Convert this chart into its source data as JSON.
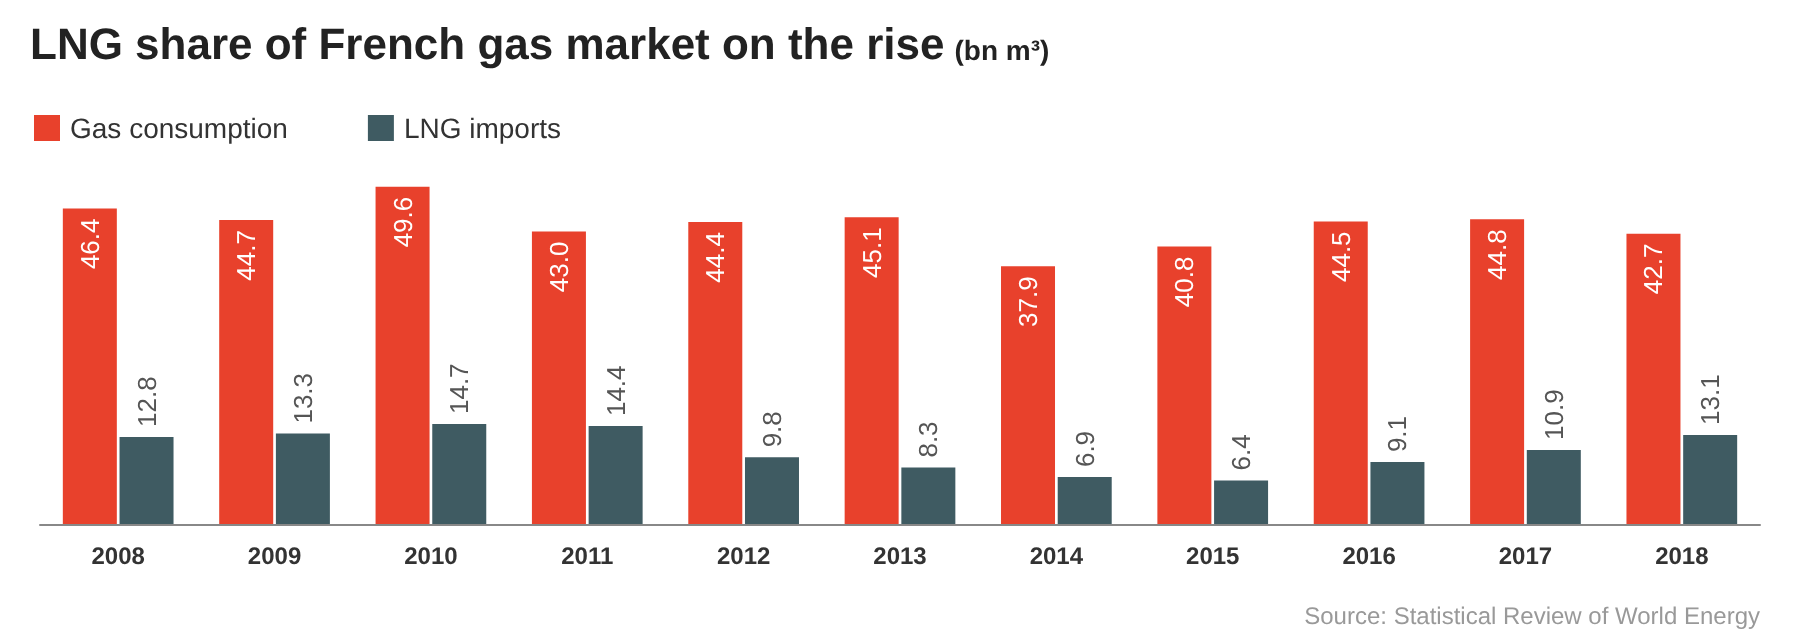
{
  "chart_data": {
    "type": "bar",
    "title": "LNG share of French gas market on the rise",
    "subtitle": "(bn m³)",
    "categories": [
      "2008",
      "2009",
      "2010",
      "2011",
      "2012",
      "2013",
      "2014",
      "2015",
      "2016",
      "2017",
      "2018"
    ],
    "series": [
      {
        "name": "Gas consumption",
        "color": "#e8412c",
        "values": [
          46.4,
          44.7,
          49.6,
          43.0,
          44.4,
          45.1,
          37.9,
          40.8,
          44.5,
          44.8,
          42.7
        ],
        "value_labels": [
          "46.4",
          "44.7",
          "49.6",
          "43.0",
          "44.4",
          "45.1",
          "37.9",
          "40.8",
          "44.5",
          "44.8",
          "42.7"
        ]
      },
      {
        "name": "LNG imports",
        "color": "#3f5b62",
        "values": [
          12.8,
          13.3,
          14.7,
          14.4,
          9.8,
          8.3,
          6.9,
          6.4,
          9.1,
          10.9,
          13.1
        ],
        "value_labels": [
          "12.8",
          "13.3",
          "14.7",
          "14.4",
          "9.8",
          "8.3",
          "6.9",
          "6.4",
          "9.1",
          "10.9",
          "13.1"
        ]
      }
    ],
    "legend": "top left",
    "annotations": [
      "Source: Statistical Review of World Energy"
    ]
  }
}
